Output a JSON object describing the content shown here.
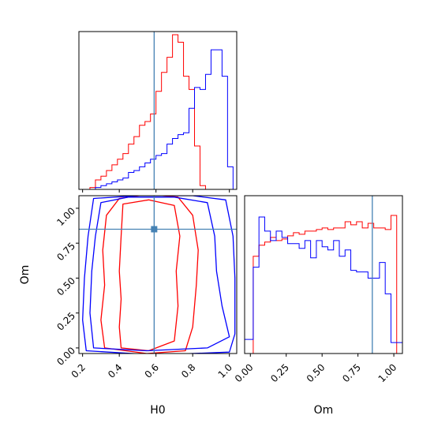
{
  "chart_data": {
    "type": "corner",
    "title": "",
    "parameters": [
      "H0",
      "Om"
    ],
    "truth": {
      "H0": 0.59,
      "Om": 0.85
    },
    "colors": {
      "red": "#ff0000",
      "blue": "#0000ff",
      "truth": "#4682b4"
    },
    "grid": false,
    "panels": [
      {
        "id": "H0-marginal",
        "type": "histogram-step",
        "xlim": [
          0.18,
          1.04
        ],
        "bin_edges": [
          0.18,
          0.21,
          0.24,
          0.27,
          0.3,
          0.33,
          0.36,
          0.39,
          0.42,
          0.45,
          0.48,
          0.51,
          0.54,
          0.57,
          0.6,
          0.63,
          0.66,
          0.69,
          0.72,
          0.75,
          0.78,
          0.81,
          0.84,
          0.87,
          0.9,
          0.93,
          0.96,
          0.99,
          1.02
        ],
        "series": [
          {
            "name": "",
            "color": "red",
            "counts": [
              0,
              0,
              0.01,
              0.05,
              0.07,
              0.1,
              0.13,
              0.16,
              0.19,
              0.24,
              0.28,
              0.34,
              0.36,
              0.4,
              0.52,
              0.62,
              0.7,
              0.82,
              0.78,
              0.6,
              0.53,
              0.23,
              0.02,
              0,
              0,
              0,
              0,
              0
            ]
          },
          {
            "name": "",
            "color": "blue",
            "counts": [
              0,
              0,
              0,
              0.01,
              0.02,
              0.03,
              0.04,
              0.05,
              0.06,
              0.09,
              0.1,
              0.12,
              0.14,
              0.16,
              0.18,
              0.19,
              0.24,
              0.27,
              0.29,
              0.3,
              0.43,
              0.54,
              0.53,
              0.61,
              0.74,
              0.74,
              0.6,
              0.12
            ]
          }
        ]
      },
      {
        "id": "Om-marginal",
        "type": "histogram-step",
        "xlim": [
          -0.04,
          1.06
        ],
        "xticks": [
          "0.00",
          "0.25",
          "0.50",
          "0.75",
          "1.00"
        ],
        "xlabel": "Om",
        "bin_edges": [
          -0.04,
          0.02,
          0.06,
          0.1,
          0.14,
          0.18,
          0.22,
          0.26,
          0.3,
          0.34,
          0.38,
          0.42,
          0.46,
          0.5,
          0.54,
          0.58,
          0.62,
          0.66,
          0.7,
          0.74,
          0.78,
          0.82,
          0.86,
          0.9,
          0.94,
          0.98,
          1.02,
          1.06
        ],
        "series": [
          {
            "name": "",
            "color": "red",
            "counts": [
              0,
              0.62,
              0.69,
              0.71,
              0.74,
              0.72,
              0.73,
              0.75,
              0.77,
              0.76,
              0.78,
              0.78,
              0.79,
              0.8,
              0.79,
              0.8,
              0.8,
              0.84,
              0.82,
              0.84,
              0.8,
              0.83,
              0.8,
              0.8,
              0.79,
              0.88,
              0
            ]
          },
          {
            "name": "",
            "color": "blue",
            "counts": [
              0.09,
              0.55,
              0.87,
              0.78,
              0.72,
              0.78,
              0.74,
              0.7,
              0.7,
              0.67,
              0.72,
              0.61,
              0.72,
              0.68,
              0.66,
              0.72,
              0.62,
              0.66,
              0.53,
              0.52,
              0.52,
              0.48,
              0.48,
              0.58,
              0.38,
              0.07,
              0.07
            ]
          }
        ]
      },
      {
        "id": "H0-Om-joint",
        "type": "contour",
        "xlim": [
          0.18,
          1.04
        ],
        "ylim": [
          -0.04,
          1.09
        ],
        "xticks": [
          "0.2",
          "0.4",
          "0.6",
          "0.8",
          "1.0"
        ],
        "yticks": [
          "0.00",
          "0.25",
          "0.50",
          "0.75",
          "1.00"
        ],
        "xlabel": "H0",
        "ylabel": "Om",
        "contours": [
          {
            "color": "red",
            "points": [
              [
                0.41,
                0.0
              ],
              [
                0.4,
                0.15
              ],
              [
                0.41,
                0.35
              ],
              [
                0.4,
                0.55
              ],
              [
                0.41,
                0.8
              ],
              [
                0.42,
                1.03
              ],
              [
                0.56,
                1.06
              ],
              [
                0.7,
                1.02
              ],
              [
                0.73,
                0.8
              ],
              [
                0.71,
                0.55
              ],
              [
                0.72,
                0.3
              ],
              [
                0.7,
                0.05
              ],
              [
                0.56,
                -0.02
              ]
            ]
          },
          {
            "color": "red",
            "points": [
              [
                0.32,
                0.0
              ],
              [
                0.3,
                0.2
              ],
              [
                0.32,
                0.45
              ],
              [
                0.31,
                0.7
              ],
              [
                0.33,
                0.95
              ],
              [
                0.4,
                1.07
              ],
              [
                0.56,
                1.1
              ],
              [
                0.72,
                1.08
              ],
              [
                0.8,
                0.95
              ],
              [
                0.83,
                0.7
              ],
              [
                0.82,
                0.45
              ],
              [
                0.8,
                0.15
              ],
              [
                0.76,
                -0.02
              ],
              [
                0.55,
                -0.04
              ]
            ]
          },
          {
            "color": "blue",
            "points": [
              [
                0.26,
                0.0
              ],
              [
                0.24,
                0.25
              ],
              [
                0.25,
                0.55
              ],
              [
                0.27,
                0.8
              ],
              [
                0.3,
                1.04
              ],
              [
                0.45,
                1.08
              ],
              [
                0.7,
                1.08
              ],
              [
                0.88,
                1.04
              ],
              [
                0.92,
                0.8
              ],
              [
                0.93,
                0.55
              ],
              [
                0.96,
                0.3
              ],
              [
                1.0,
                0.08
              ],
              [
                0.88,
                0.0
              ],
              [
                0.55,
                -0.02
              ]
            ]
          },
          {
            "color": "blue",
            "points": [
              [
                0.22,
                -0.02
              ],
              [
                0.2,
                0.2
              ],
              [
                0.21,
                0.5
              ],
              [
                0.23,
                0.8
              ],
              [
                0.26,
                1.07
              ],
              [
                0.5,
                1.09
              ],
              [
                0.8,
                1.09
              ],
              [
                0.98,
                1.06
              ],
              [
                1.02,
                0.8
              ],
              [
                1.03,
                0.5
              ],
              [
                1.03,
                0.1
              ],
              [
                1.0,
                -0.03
              ],
              [
                0.6,
                -0.05
              ]
            ]
          }
        ]
      }
    ]
  }
}
